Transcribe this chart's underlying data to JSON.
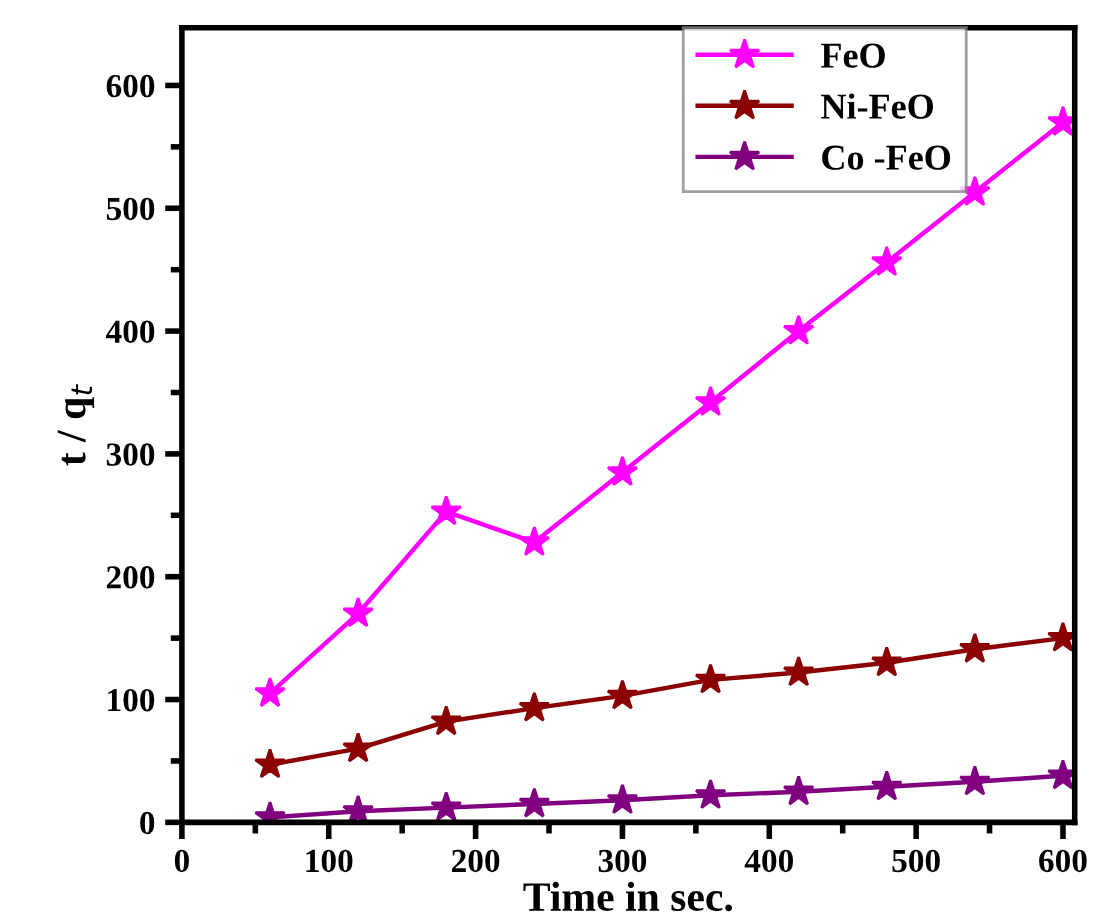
{
  "chart_data": {
    "type": "line",
    "xlabel": "Time in sec.",
    "ylabel": "t / q$_{t}$",
    "x": [
      60,
      120,
      180,
      240,
      300,
      360,
      420,
      480,
      540,
      600
    ],
    "xlim": [
      0,
      608
    ],
    "xticks": [
      0,
      100,
      200,
      300,
      400,
      500,
      600
    ],
    "ylim": [
      0,
      647
    ],
    "yticks": [
      0,
      100,
      200,
      300,
      400,
      500,
      600
    ],
    "marker": "star",
    "line_style": "solid",
    "grid": false,
    "legend": "top",
    "series": [
      {
        "name": "FeO",
        "color": "#ff00ff",
        "values": [
          105,
          170,
          253,
          228,
          285,
          342,
          400,
          456,
          513,
          570
        ]
      },
      {
        "name": "Ni-FeO",
        "color": "#8b0000",
        "values": [
          47,
          60,
          82,
          93,
          103,
          116,
          122,
          130,
          141,
          150
        ]
      },
      {
        "name": "Co -FeO",
        "color": "#800080",
        "values": [
          4,
          9,
          12,
          15,
          18,
          22,
          25,
          29,
          33,
          38
        ]
      }
    ]
  }
}
